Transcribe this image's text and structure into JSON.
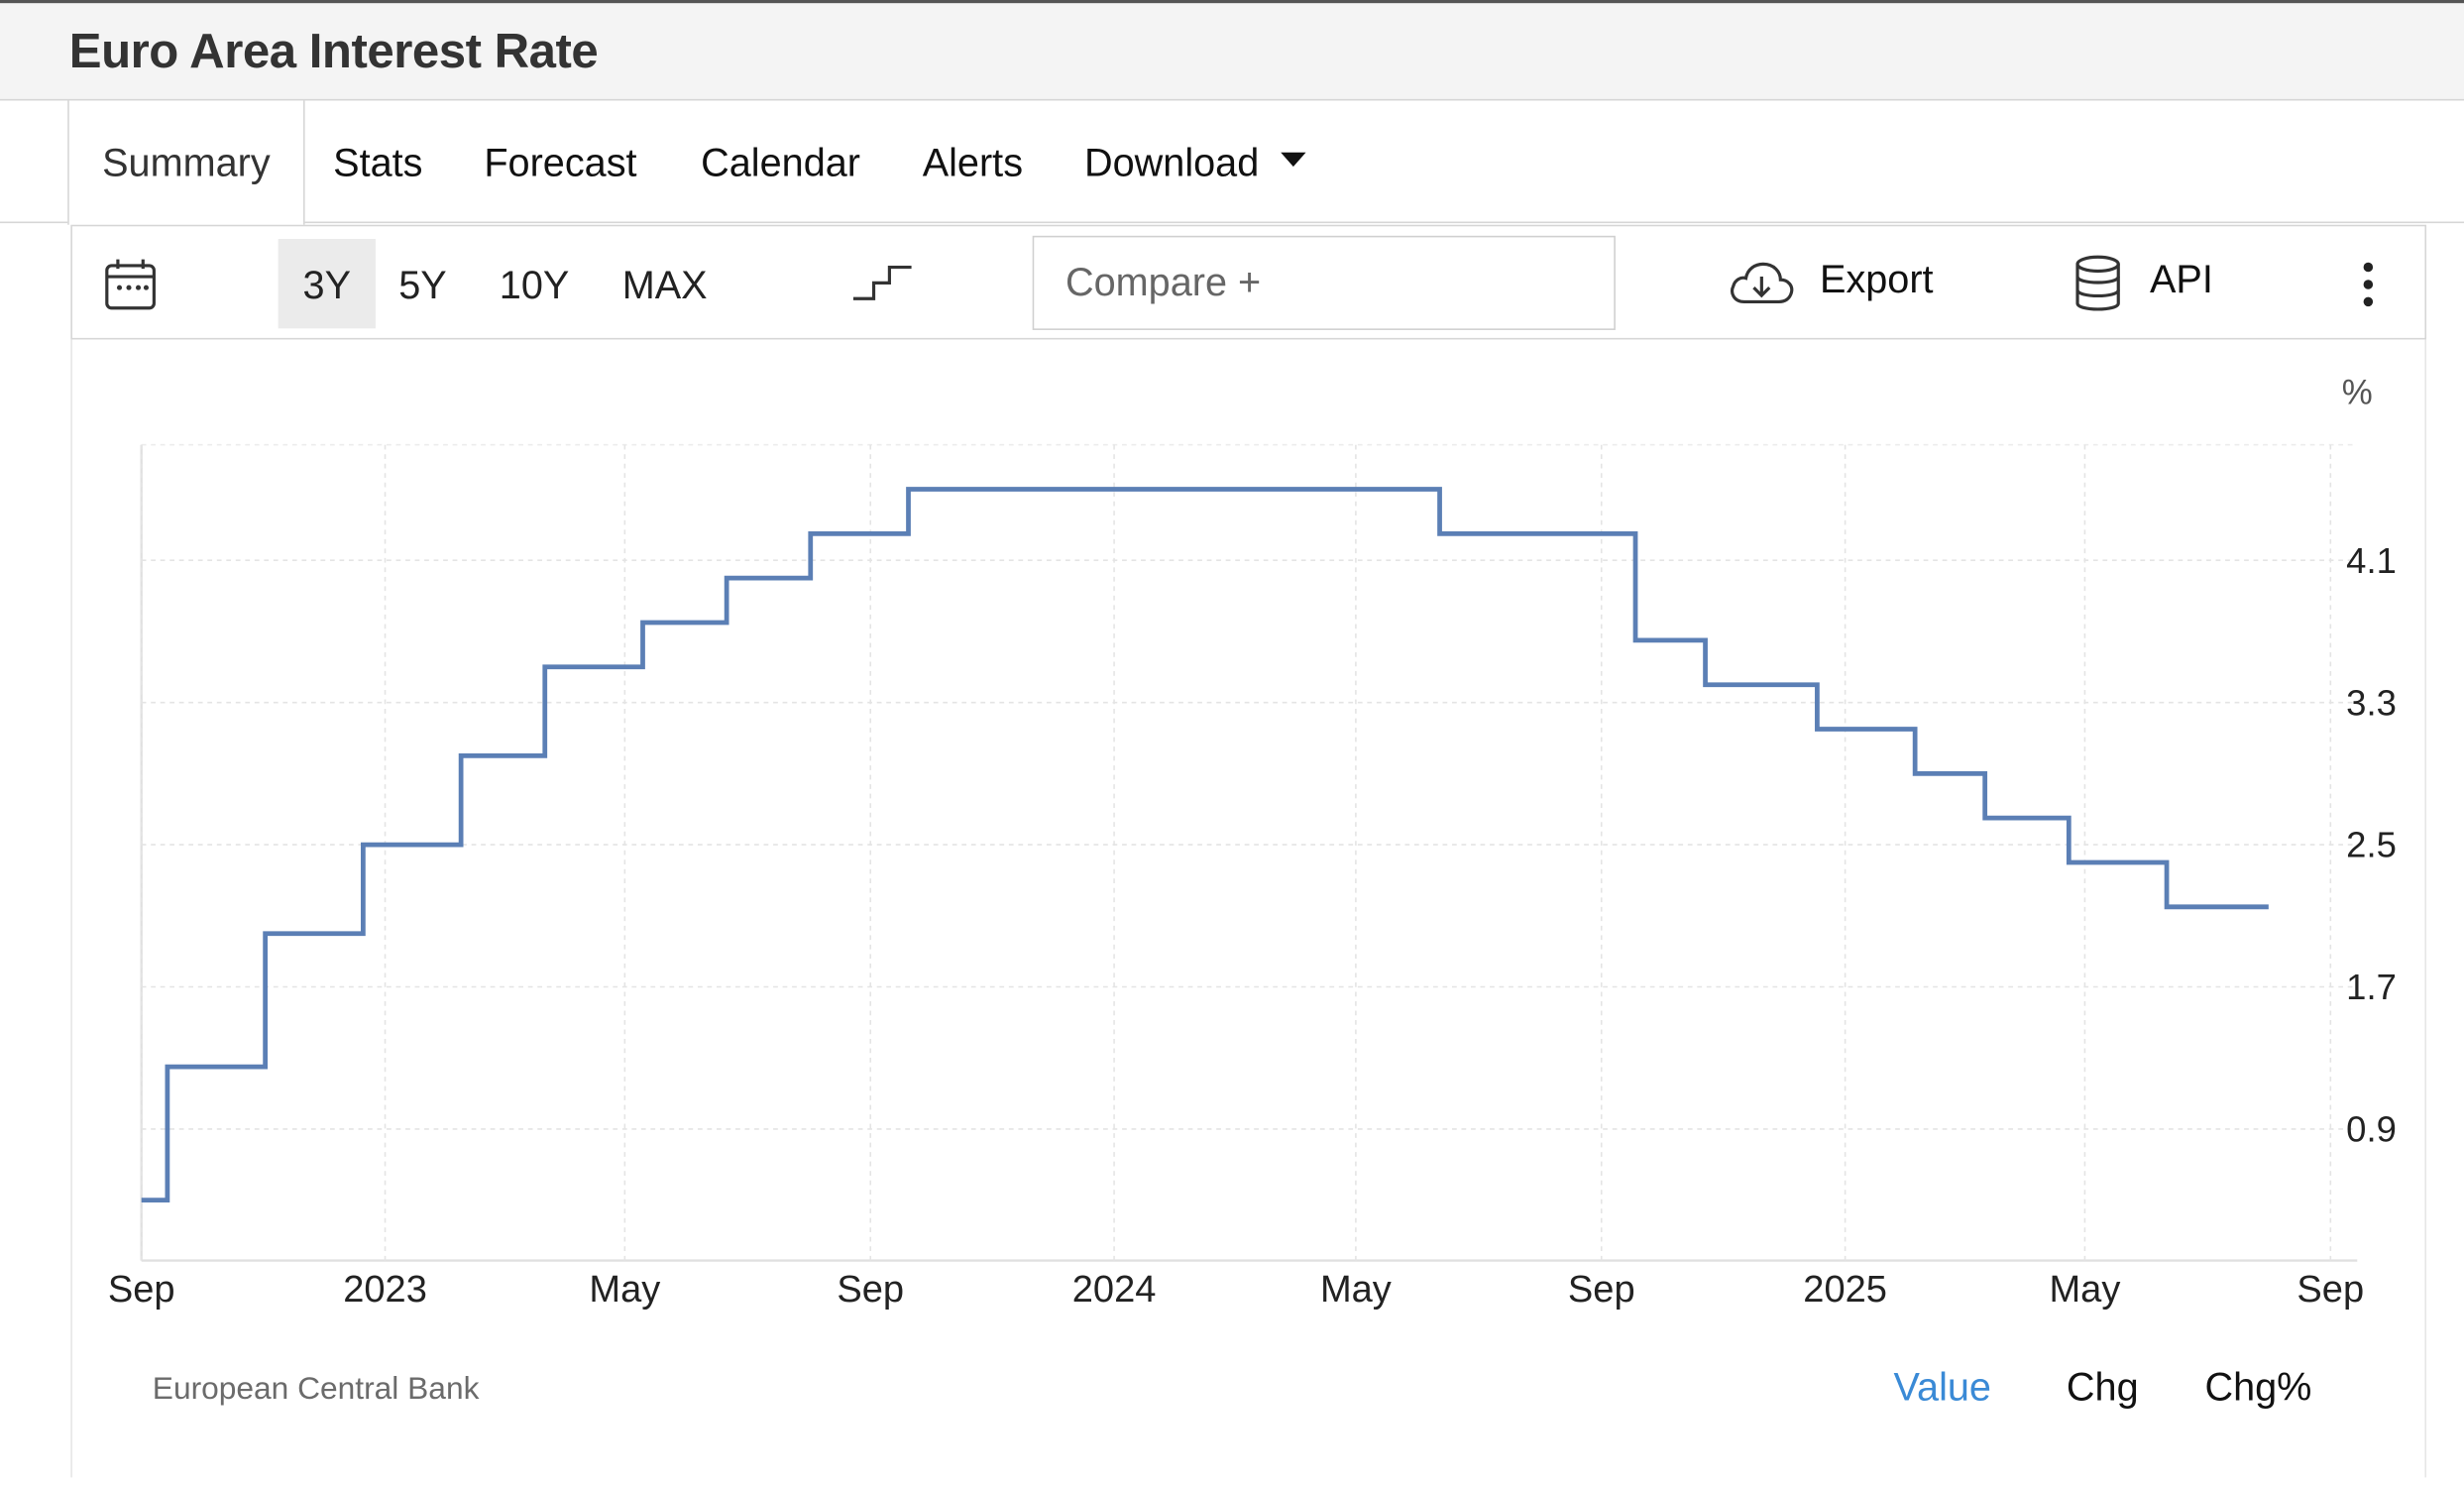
{
  "title": "Euro Area Interest Rate",
  "tabs": [
    {
      "label": "Summary",
      "active": true
    },
    {
      "label": "Stats"
    },
    {
      "label": "Forecast"
    },
    {
      "label": "Calendar"
    },
    {
      "label": "Alerts"
    },
    {
      "label": "Download"
    }
  ],
  "toolbar": {
    "calendar_icon": "calendar-icon",
    "ranges": [
      "3Y",
      "5Y",
      "10Y",
      "MAX"
    ],
    "active_range": "3Y",
    "chart_style_icon": "step-line-icon",
    "compare_placeholder": "Compare +",
    "export_label": "Export",
    "export_icon": "cloud-download-icon",
    "api_label": "API",
    "api_icon": "database-icon",
    "more_icon": "vertical-dots-icon"
  },
  "chart_data": {
    "type": "line",
    "step": true,
    "unit_label": "%",
    "x_ticks": [
      "Sep",
      "2023",
      "May",
      "Sep",
      "2024",
      "May",
      "Sep",
      "2025",
      "May",
      "Sep"
    ],
    "x_tick_dates": [
      "2022-09-01",
      "2023-01-01",
      "2023-05-01",
      "2023-09-01",
      "2024-01-01",
      "2024-05-01",
      "2024-09-01",
      "2025-01-01",
      "2025-05-01",
      "2025-09-01"
    ],
    "y_ticks": [
      "0.9",
      "1.7",
      "2.5",
      "3.3",
      "4.1"
    ],
    "ylim": [
      0.16,
      4.75
    ],
    "xlim": [
      "2022-09-01",
      "2025-09-01"
    ],
    "grid": true,
    "line_color": "#5b7fb5",
    "points": [
      {
        "date": "2022-09-01",
        "value": 0.5
      },
      {
        "date": "2022-09-14",
        "value": 1.25
      },
      {
        "date": "2022-11-02",
        "value": 2.0
      },
      {
        "date": "2022-12-21",
        "value": 2.5
      },
      {
        "date": "2023-02-08",
        "value": 3.0
      },
      {
        "date": "2023-03-22",
        "value": 3.5
      },
      {
        "date": "2023-05-10",
        "value": 3.75
      },
      {
        "date": "2023-06-21",
        "value": 4.0
      },
      {
        "date": "2023-08-02",
        "value": 4.25
      },
      {
        "date": "2023-09-20",
        "value": 4.5
      },
      {
        "date": "2024-06-12",
        "value": 4.25
      },
      {
        "date": "2024-09-18",
        "value": 3.65
      },
      {
        "date": "2024-10-23",
        "value": 3.4
      },
      {
        "date": "2024-12-18",
        "value": 3.15
      },
      {
        "date": "2025-02-05",
        "value": 2.9
      },
      {
        "date": "2025-03-12",
        "value": 2.65
      },
      {
        "date": "2025-04-23",
        "value": 2.4
      },
      {
        "date": "2025-06-11",
        "value": 2.15
      },
      {
        "date": "2025-08-01",
        "value": 2.15
      }
    ]
  },
  "footer": {
    "source": "European Central Bank",
    "value_tabs": [
      "Value",
      "Chg",
      "Chg%"
    ],
    "active_value_tab": "Value",
    "active_color": "#3a8ad6"
  }
}
